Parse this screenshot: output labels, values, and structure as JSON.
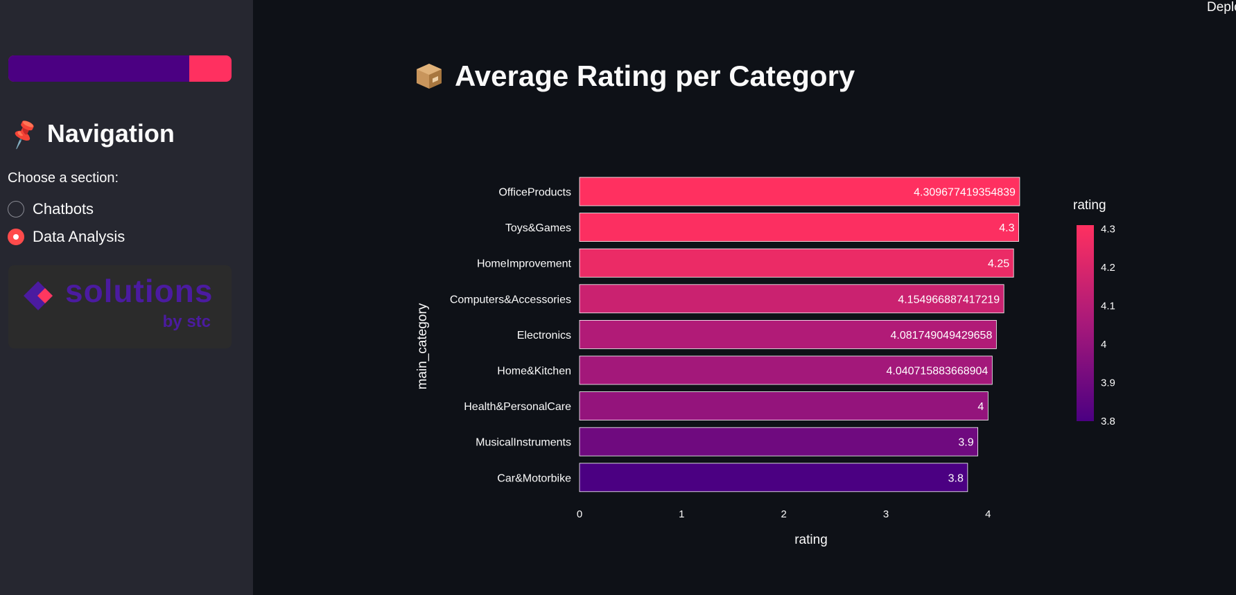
{
  "sidebar": {
    "progress": {
      "value": 0.81,
      "track_color": "#ff3060",
      "fill_color": "#4b0082"
    },
    "nav_heading": "Navigation",
    "nav_icon": "pushpin-icon",
    "section_label": "Choose a section:",
    "options": [
      {
        "label": "Chatbots",
        "checked": false
      },
      {
        "label": "Data Analysis",
        "checked": true
      }
    ],
    "logo": {
      "text": "solutions",
      "sub_by": "by",
      "sub_brand": "stc"
    }
  },
  "header": {
    "deploy_label": "Deplo"
  },
  "main": {
    "title": "Average Rating per Category",
    "title_icon": "package-icon"
  },
  "chart_data": {
    "type": "bar",
    "orientation": "horizontal",
    "categories": [
      "OfficeProducts",
      "Toys&Games",
      "HomeImprovement",
      "Computers&Accessories",
      "Electronics",
      "Home&Kitchen",
      "Health&PersonalCare",
      "MusicalInstruments",
      "Car&Motorbike"
    ],
    "values": [
      4.309677419354839,
      4.3,
      4.25,
      4.154966887417219,
      4.081749049429658,
      4.040715883668904,
      4,
      3.9,
      3.8
    ],
    "value_labels": [
      "4.309677419354839",
      "4.3",
      "4.25",
      "4.154966887417219",
      "4.081749049429658",
      "4.040715883668904",
      "4",
      "3.9",
      "3.8"
    ],
    "xlabel": "rating",
    "ylabel": "main_category",
    "xlim": [
      0,
      4.31
    ],
    "xticks": [
      0,
      1,
      2,
      3,
      4
    ],
    "colorbar": {
      "title": "rating",
      "range": [
        3.8,
        4.31
      ],
      "ticks": [
        "4.3",
        "4.2",
        "4.1",
        "4",
        "3.9",
        "3.8"
      ],
      "tick_values": [
        4.3,
        4.2,
        4.1,
        4.0,
        3.9,
        3.8
      ],
      "color_low": "#4b0082",
      "color_high": "#ff3060"
    }
  }
}
